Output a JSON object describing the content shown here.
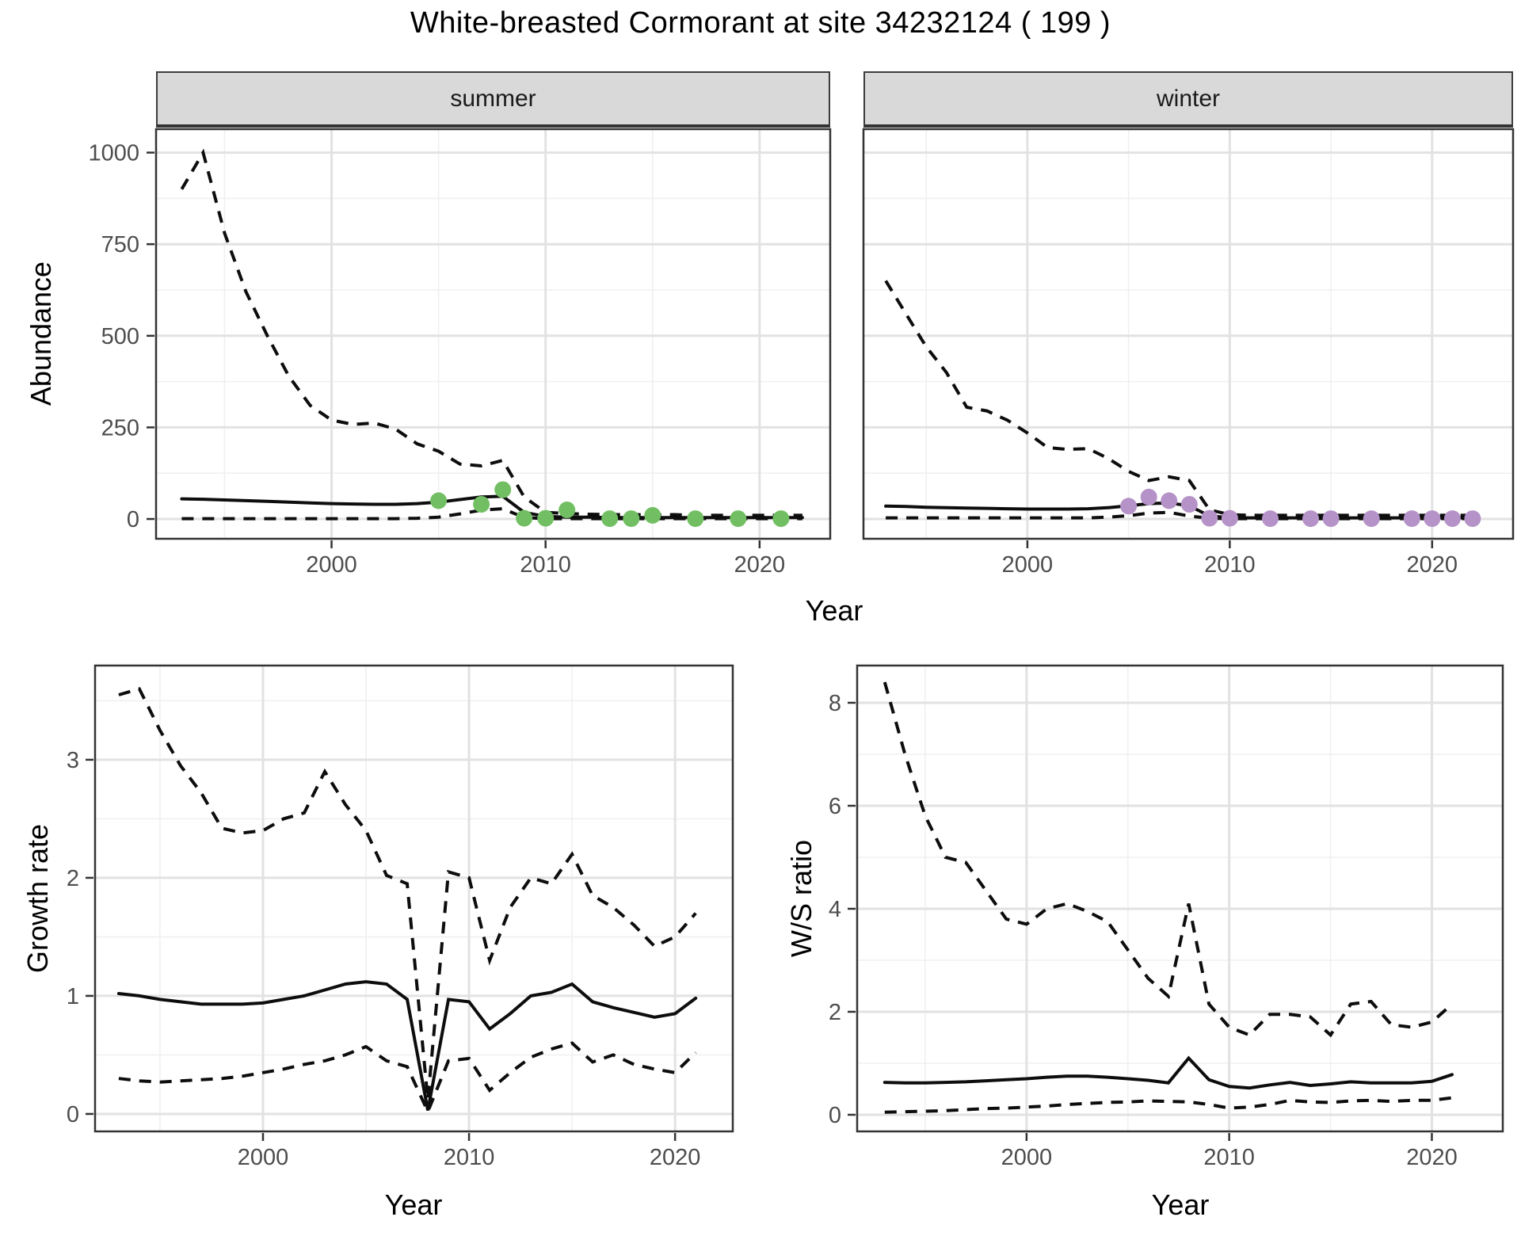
{
  "title": "White-breasted Cormorant at site 34232124 ( 199 )",
  "axis_titles": {
    "x": "Year",
    "abundance": "Abundance",
    "growth": "Growth rate",
    "ws": "W/S ratio"
  },
  "facets": [
    {
      "label": "summer"
    },
    {
      "label": "winter"
    }
  ],
  "colors": {
    "summer_points": "#72bf63",
    "winter_points": "#b593c8",
    "line": "#0d0d0d",
    "grid_major": "#e2e2e2",
    "grid_minor": "#f0f0f0",
    "panel_border": "#333333",
    "strip_bg": "#d9d9d9",
    "tick_label": "#4d4d4d"
  },
  "chart_data": [
    {
      "id": "abundance-summer",
      "type": "line",
      "facet": "summer",
      "xlabel": "Year",
      "ylabel": "Abundance",
      "xlim": [
        1991.8,
        2023.3
      ],
      "ylim": [
        -54,
        1064
      ],
      "x_ticks": [
        2000,
        2010,
        2020
      ],
      "x_minor": [
        1995,
        2005,
        2015
      ],
      "y_ticks": [
        0,
        250,
        500,
        750,
        1000
      ],
      "y_minor": [
        125,
        375,
        625,
        875
      ],
      "grid": true,
      "legend": "none",
      "years": [
        1993,
        1994,
        1995,
        1996,
        1997,
        1998,
        1999,
        2000,
        2001,
        2002,
        2003,
        2004,
        2005,
        2006,
        2007,
        2008,
        2009,
        2010,
        2011,
        2012,
        2013,
        2014,
        2015,
        2016,
        2017,
        2018,
        2019,
        2020,
        2021,
        2022
      ],
      "series": [
        {
          "name": "upper-95ci",
          "style": "dashed",
          "values": [
            900,
            1000,
            780,
            620,
            500,
            390,
            310,
            270,
            258,
            262,
            245,
            205,
            185,
            150,
            145,
            160,
            60,
            18,
            15,
            13,
            12,
            12,
            11,
            12,
            10,
            10,
            10,
            10,
            10,
            10
          ]
        },
        {
          "name": "fit",
          "style": "solid",
          "values": [
            55,
            54,
            52,
            50,
            48,
            46,
            44,
            42,
            41,
            40,
            40,
            42,
            46,
            53,
            60,
            62,
            18,
            7,
            5,
            5,
            4,
            4,
            4,
            4,
            4,
            4,
            4,
            4,
            4,
            4
          ]
        },
        {
          "name": "lower-95ci",
          "style": "dashed",
          "values": [
            1,
            1,
            1,
            1,
            1,
            1,
            1,
            1,
            1,
            1,
            1,
            2,
            5,
            14,
            24,
            28,
            4,
            1,
            1,
            1,
            1,
            1,
            1,
            1,
            1,
            1,
            1,
            1,
            1,
            1
          ]
        }
      ],
      "points": {
        "name": "observed-counts-summer",
        "color": "#72bf63",
        "x": [
          2005,
          2007,
          2008,
          2009,
          2010,
          2011,
          2013,
          2014,
          2015,
          2017,
          2019,
          2021
        ],
        "y": [
          50,
          40,
          80,
          2,
          2,
          25,
          1,
          1,
          10,
          1,
          1,
          1
        ]
      }
    },
    {
      "id": "abundance-winter",
      "type": "line",
      "facet": "winter",
      "xlabel": "Year",
      "ylabel": "Abundance",
      "xlim": [
        1991.9,
        2024.0
      ],
      "ylim": [
        -54,
        1064
      ],
      "x_ticks": [
        2000,
        2010,
        2020
      ],
      "x_minor": [
        1995,
        2005,
        2015
      ],
      "y_ticks": [
        0,
        250,
        500,
        750,
        1000
      ],
      "y_minor": [
        125,
        375,
        625,
        875
      ],
      "grid": true,
      "legend": "none",
      "years": [
        1993,
        1994,
        1995,
        1996,
        1997,
        1998,
        1999,
        2000,
        2001,
        2002,
        2003,
        2004,
        2005,
        2006,
        2007,
        2008,
        2009,
        2010,
        2011,
        2012,
        2013,
        2014,
        2015,
        2016,
        2017,
        2018,
        2019,
        2020,
        2021,
        2022
      ],
      "series": [
        {
          "name": "upper-95ci",
          "style": "dashed",
          "values": [
            650,
            560,
            470,
            400,
            305,
            295,
            270,
            235,
            195,
            190,
            192,
            165,
            130,
            105,
            115,
            105,
            25,
            12,
            10,
            10,
            10,
            10,
            10,
            10,
            10,
            10,
            10,
            10,
            10,
            10
          ]
        },
        {
          "name": "fit",
          "style": "solid",
          "values": [
            35,
            34,
            32,
            31,
            30,
            29,
            28,
            27,
            27,
            27,
            28,
            31,
            36,
            42,
            44,
            36,
            8,
            4,
            3,
            3,
            3,
            3,
            3,
            3,
            3,
            3,
            3,
            3,
            3,
            3
          ]
        },
        {
          "name": "lower-95ci",
          "style": "dashed",
          "values": [
            3,
            3,
            3,
            3,
            3,
            3,
            3,
            3,
            3,
            3,
            3,
            5,
            9,
            16,
            18,
            8,
            2,
            1,
            1,
            1,
            1,
            1,
            1,
            1,
            1,
            1,
            1,
            1,
            1,
            1
          ]
        }
      ],
      "points": {
        "name": "observed-counts-winter",
        "color": "#b593c8",
        "x": [
          2005,
          2006,
          2007,
          2008,
          2009,
          2010,
          2012,
          2014,
          2015,
          2017,
          2019,
          2020,
          2021,
          2022
        ],
        "y": [
          35,
          60,
          50,
          40,
          2,
          2,
          1,
          1,
          1,
          1,
          1,
          1,
          1,
          1
        ]
      }
    },
    {
      "id": "growth-rate",
      "type": "line",
      "xlabel": "Year",
      "ylabel": "Growth rate",
      "xlim": [
        1991.85,
        2022.8
      ],
      "ylim": [
        -0.148,
        3.798
      ],
      "x_ticks": [
        2000,
        2010,
        2020
      ],
      "x_minor": [
        1995,
        2005,
        2015
      ],
      "y_ticks": [
        0,
        1,
        2,
        3
      ],
      "y_minor": [
        0.5,
        1.5,
        2.5,
        3.5
      ],
      "grid": true,
      "legend": "none",
      "years": [
        1993,
        1994,
        1995,
        1996,
        1997,
        1998,
        1999,
        2000,
        2001,
        2002,
        2003,
        2004,
        2005,
        2006,
        2007,
        2008,
        2009,
        2010,
        2011,
        2012,
        2013,
        2014,
        2015,
        2016,
        2017,
        2018,
        2019,
        2020,
        2021
      ],
      "series": [
        {
          "name": "upper-95ci",
          "style": "dashed",
          "values": [
            3.55,
            3.6,
            3.25,
            2.95,
            2.72,
            2.42,
            2.38,
            2.4,
            2.5,
            2.55,
            2.9,
            2.62,
            2.4,
            2.02,
            1.95,
            0.12,
            2.05,
            2.0,
            1.3,
            1.75,
            2.0,
            1.95,
            2.2,
            1.85,
            1.75,
            1.6,
            1.42,
            1.5,
            1.7
          ]
        },
        {
          "name": "fit",
          "style": "solid",
          "values": [
            1.02,
            1.0,
            0.97,
            0.95,
            0.93,
            0.93,
            0.93,
            0.94,
            0.97,
            1.0,
            1.05,
            1.1,
            1.12,
            1.1,
            0.97,
            0.03,
            0.97,
            0.95,
            0.72,
            0.85,
            1.0,
            1.03,
            1.1,
            0.95,
            0.9,
            0.86,
            0.82,
            0.85,
            0.98
          ]
        },
        {
          "name": "lower-95ci",
          "style": "dashed",
          "values": [
            0.3,
            0.28,
            0.27,
            0.28,
            0.29,
            0.3,
            0.32,
            0.35,
            0.38,
            0.42,
            0.45,
            0.5,
            0.57,
            0.45,
            0.4,
            0.02,
            0.45,
            0.47,
            0.2,
            0.35,
            0.48,
            0.55,
            0.6,
            0.44,
            0.5,
            0.42,
            0.38,
            0.35,
            0.52
          ]
        }
      ],
      "points": null
    },
    {
      "id": "ws-ratio",
      "type": "line",
      "xlabel": "Year",
      "ylabel": "W/S ratio",
      "xlim": [
        1991.64,
        2023.5
      ],
      "ylim": [
        -0.323,
        8.723
      ],
      "x_ticks": [
        2000,
        2010,
        2020
      ],
      "x_minor": [
        1995,
        2005,
        2015
      ],
      "y_ticks": [
        0,
        2,
        4,
        6,
        8
      ],
      "y_minor": [
        1,
        3,
        5,
        7
      ],
      "grid": true,
      "legend": "none",
      "years": [
        1993,
        1994,
        1995,
        1996,
        1997,
        1998,
        1999,
        2000,
        2001,
        2002,
        2003,
        2004,
        2005,
        2006,
        2007,
        2008,
        2009,
        2010,
        2011,
        2012,
        2013,
        2014,
        2015,
        2016,
        2017,
        2018,
        2019,
        2020,
        2021
      ],
      "series": [
        {
          "name": "upper-95ci",
          "style": "dashed",
          "values": [
            8.4,
            7.0,
            5.8,
            5.0,
            4.9,
            4.35,
            3.8,
            3.7,
            4.0,
            4.1,
            3.95,
            3.75,
            3.2,
            2.65,
            2.3,
            4.1,
            2.15,
            1.7,
            1.55,
            1.95,
            1.95,
            1.9,
            1.55,
            2.15,
            2.2,
            1.75,
            1.7,
            1.8,
            2.15
          ]
        },
        {
          "name": "fit",
          "style": "solid",
          "values": [
            0.63,
            0.62,
            0.62,
            0.63,
            0.64,
            0.66,
            0.68,
            0.7,
            0.73,
            0.75,
            0.75,
            0.73,
            0.7,
            0.67,
            0.62,
            1.1,
            0.68,
            0.55,
            0.52,
            0.58,
            0.63,
            0.57,
            0.6,
            0.64,
            0.62,
            0.62,
            0.62,
            0.65,
            0.78
          ]
        },
        {
          "name": "lower-95ci",
          "style": "dashed",
          "values": [
            0.05,
            0.06,
            0.07,
            0.08,
            0.1,
            0.12,
            0.13,
            0.15,
            0.17,
            0.2,
            0.22,
            0.24,
            0.25,
            0.27,
            0.26,
            0.25,
            0.2,
            0.13,
            0.15,
            0.2,
            0.28,
            0.25,
            0.24,
            0.27,
            0.28,
            0.26,
            0.28,
            0.28,
            0.33
          ]
        }
      ],
      "points": null
    }
  ]
}
